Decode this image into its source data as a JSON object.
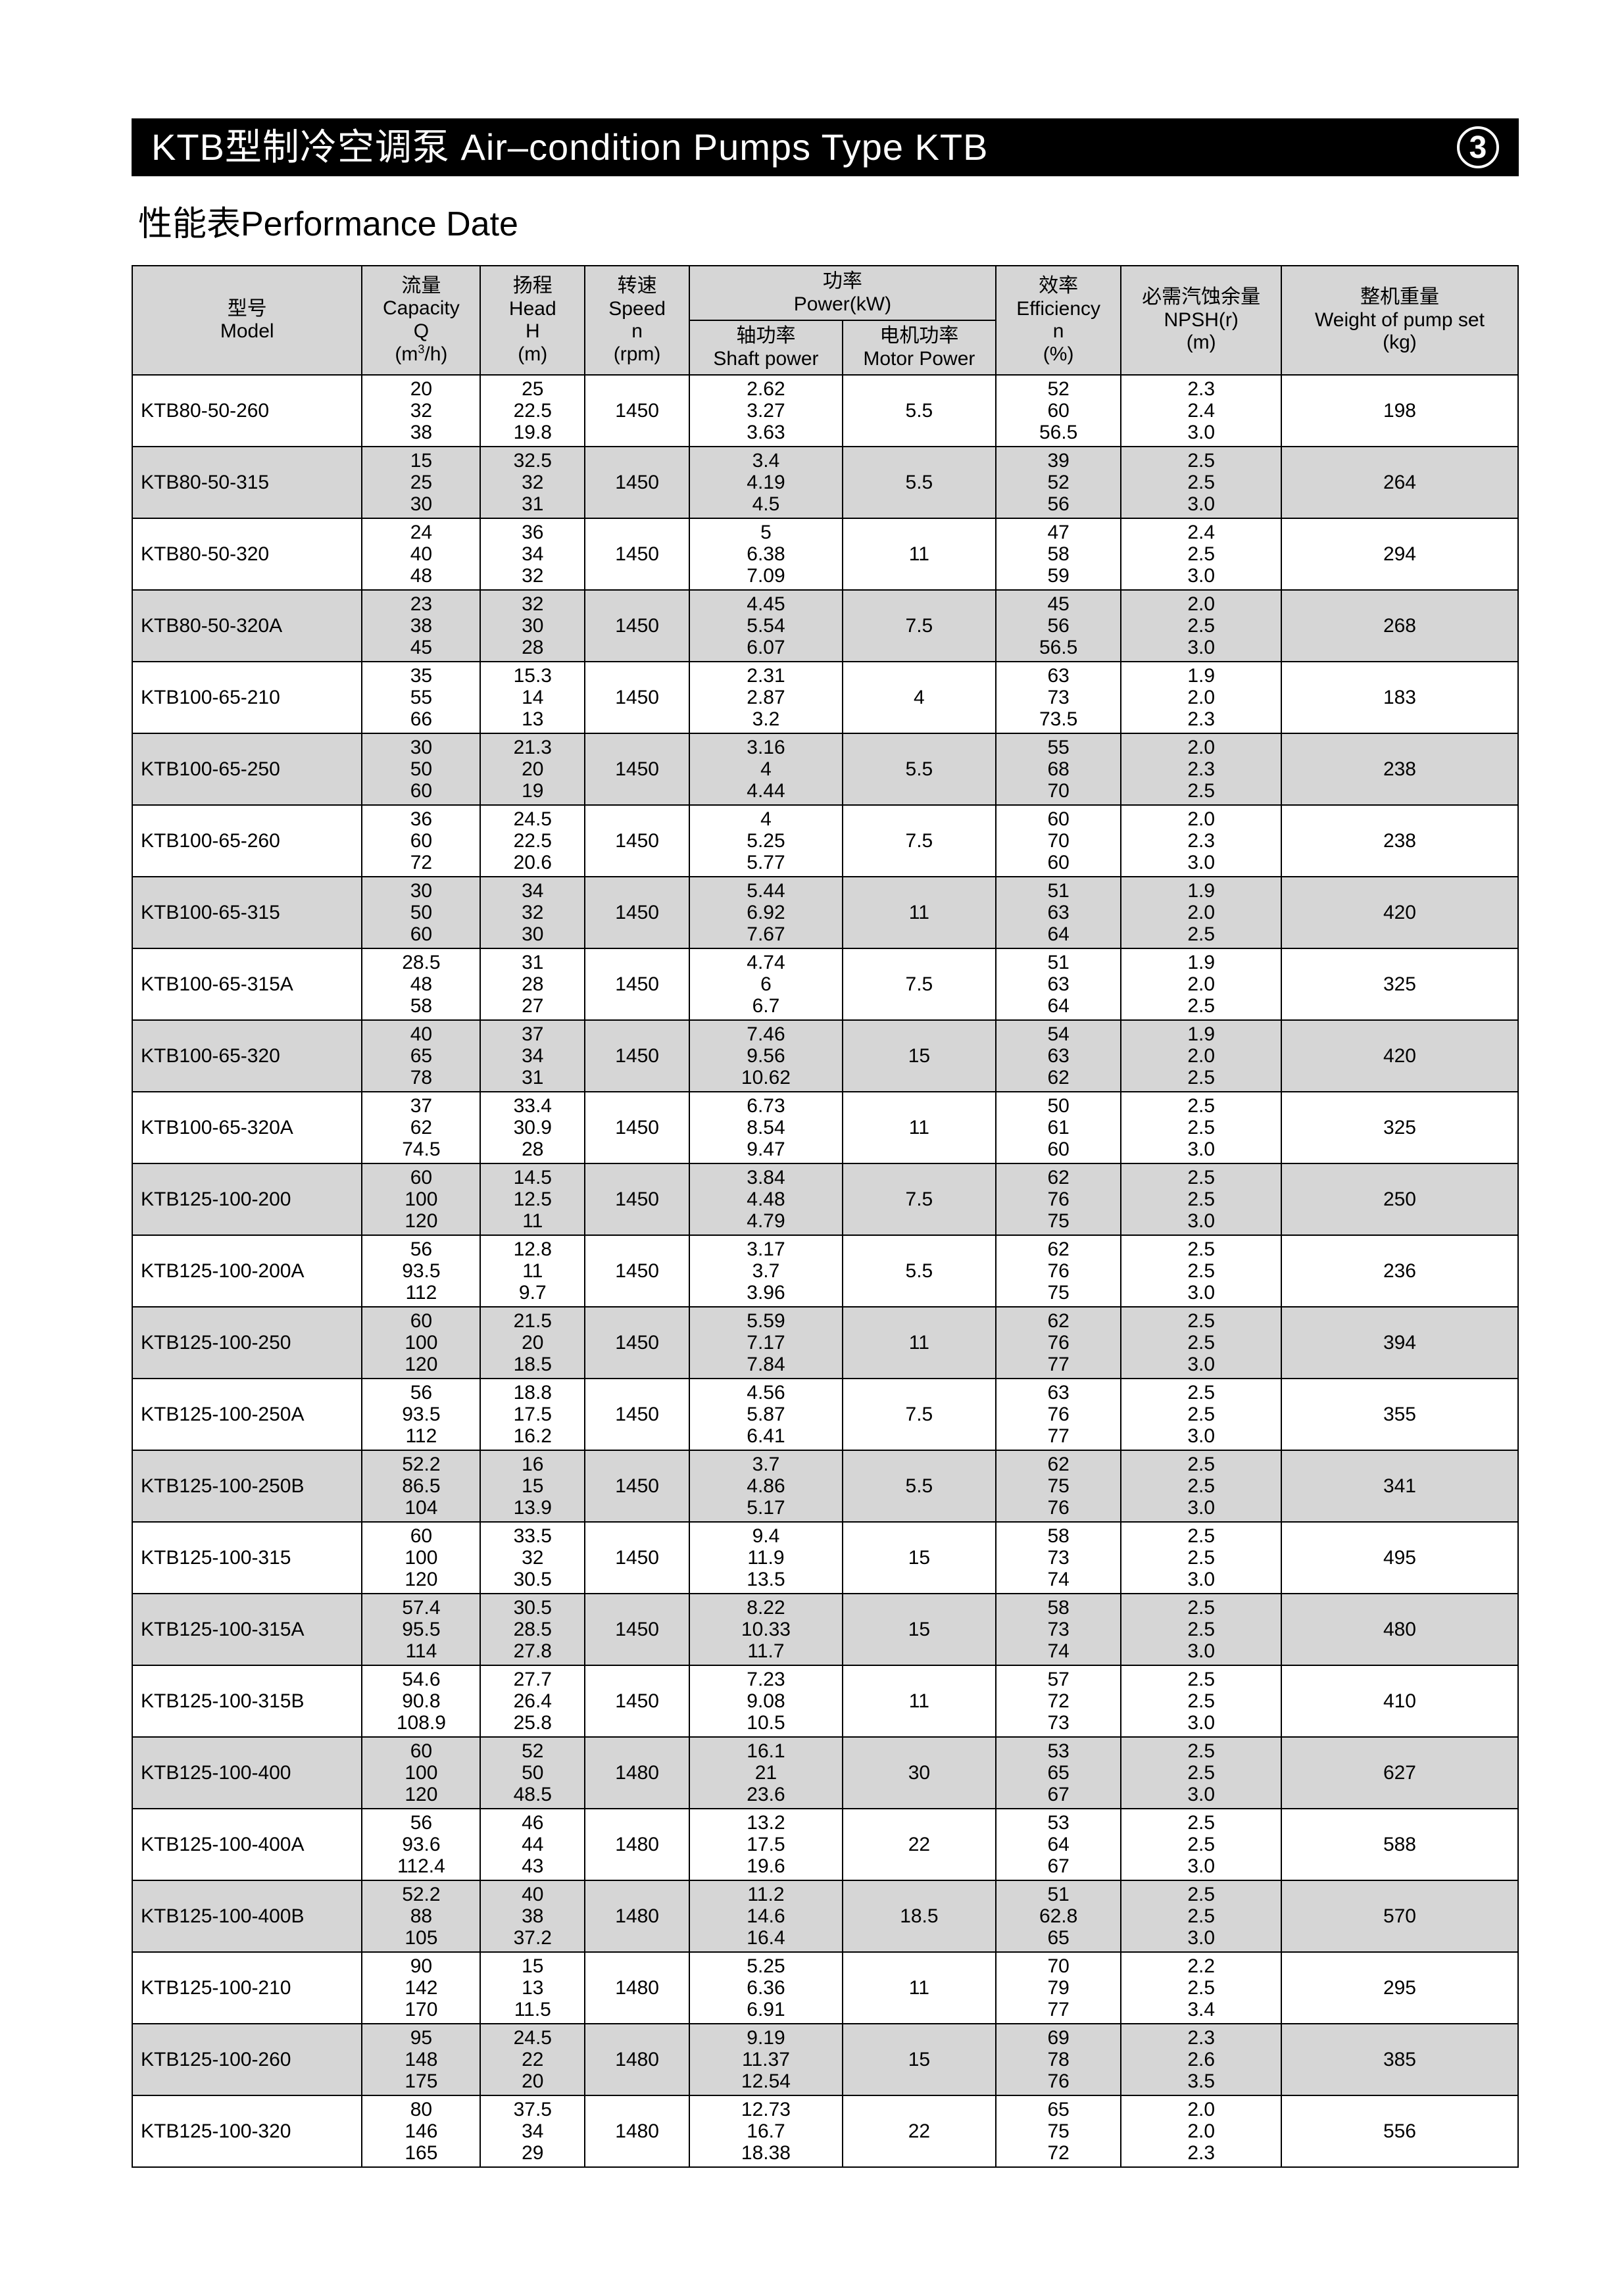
{
  "title_bar": "KTB型制冷空调泵 Air–condition Pumps Type KTB",
  "page_number": "3",
  "subtitle": "性能表Performance Date",
  "colors": {
    "bar_bg": "#000000",
    "bar_fg": "#ffffff",
    "header_bg": "#d6d6d6",
    "row_shade": "#d6d6d6",
    "border": "#000000"
  },
  "columns": {
    "model": {
      "cn": "型号",
      "en": "Model"
    },
    "capacity": {
      "cn": "流量",
      "en": "Capacity",
      "sym": "Q",
      "unit": "(m³/h)"
    },
    "head": {
      "cn": "扬程",
      "en": "Head",
      "sym": "H",
      "unit": "(m)"
    },
    "speed": {
      "cn": "转速",
      "en": "Speed",
      "sym": "n",
      "unit": "(rpm)"
    },
    "power_group": {
      "cn": "功率",
      "en": "Power(kW)"
    },
    "shaft": {
      "cn": "轴功率",
      "en": "Shaft power"
    },
    "motor": {
      "cn": "电机功率",
      "en": "Motor Power"
    },
    "eff": {
      "cn": "效率",
      "en": "Efficiency",
      "sym": "n",
      "unit": "(%)"
    },
    "npsh": {
      "cn": "必需汽蚀余量",
      "en": "NPSH(r)",
      "unit": "(m)"
    },
    "weight": {
      "cn": "整机重量",
      "en": "Weight of pump set",
      "unit": "(kg)"
    }
  },
  "rows": [
    {
      "model": "KTB80-50-260",
      "cap": [
        "20",
        "32",
        "38"
      ],
      "head": [
        "25",
        "22.5",
        "19.8"
      ],
      "speed": "1450",
      "shaft": [
        "2.62",
        "3.27",
        "3.63"
      ],
      "motor": "5.5",
      "eff": [
        "52",
        "60",
        "56.5"
      ],
      "npsh": [
        "2.3",
        "2.4",
        "3.0"
      ],
      "weight": "198"
    },
    {
      "model": "KTB80-50-315",
      "cap": [
        "15",
        "25",
        "30"
      ],
      "head": [
        "32.5",
        "32",
        "31"
      ],
      "speed": "1450",
      "shaft": [
        "3.4",
        "4.19",
        "4.5"
      ],
      "motor": "5.5",
      "eff": [
        "39",
        "52",
        "56"
      ],
      "npsh": [
        "2.5",
        "2.5",
        "3.0"
      ],
      "weight": "264"
    },
    {
      "model": "KTB80-50-320",
      "cap": [
        "24",
        "40",
        "48"
      ],
      "head": [
        "36",
        "34",
        "32"
      ],
      "speed": "1450",
      "shaft": [
        "5",
        "6.38",
        "7.09"
      ],
      "motor": "11",
      "eff": [
        "47",
        "58",
        "59"
      ],
      "npsh": [
        "2.4",
        "2.5",
        "3.0"
      ],
      "weight": "294"
    },
    {
      "model": "KTB80-50-320A",
      "cap": [
        "23",
        "38",
        "45"
      ],
      "head": [
        "32",
        "30",
        "28"
      ],
      "speed": "1450",
      "shaft": [
        "4.45",
        "5.54",
        "6.07"
      ],
      "motor": "7.5",
      "eff": [
        "45",
        "56",
        "56.5"
      ],
      "npsh": [
        "2.0",
        "2.5",
        "3.0"
      ],
      "weight": "268"
    },
    {
      "model": "KTB100-65-210",
      "cap": [
        "35",
        "55",
        "66"
      ],
      "head": [
        "15.3",
        "14",
        "13"
      ],
      "speed": "1450",
      "shaft": [
        "2.31",
        "2.87",
        "3.2"
      ],
      "motor": "4",
      "eff": [
        "63",
        "73",
        "73.5"
      ],
      "npsh": [
        "1.9",
        "2.0",
        "2.3"
      ],
      "weight": "183"
    },
    {
      "model": "KTB100-65-250",
      "cap": [
        "30",
        "50",
        "60"
      ],
      "head": [
        "21.3",
        "20",
        "19"
      ],
      "speed": "1450",
      "shaft": [
        "3.16",
        "4",
        "4.44"
      ],
      "motor": "5.5",
      "eff": [
        "55",
        "68",
        "70"
      ],
      "npsh": [
        "2.0",
        "2.3",
        "2.5"
      ],
      "weight": "238"
    },
    {
      "model": "KTB100-65-260",
      "cap": [
        "36",
        "60",
        "72"
      ],
      "head": [
        "24.5",
        "22.5",
        "20.6"
      ],
      "speed": "1450",
      "shaft": [
        "4",
        "5.25",
        "5.77"
      ],
      "motor": "7.5",
      "eff": [
        "60",
        "70",
        "60"
      ],
      "npsh": [
        "2.0",
        "2.3",
        "3.0"
      ],
      "weight": "238"
    },
    {
      "model": "KTB100-65-315",
      "cap": [
        "30",
        "50",
        "60"
      ],
      "head": [
        "34",
        "32",
        "30"
      ],
      "speed": "1450",
      "shaft": [
        "5.44",
        "6.92",
        "7.67"
      ],
      "motor": "11",
      "eff": [
        "51",
        "63",
        "64"
      ],
      "npsh": [
        "1.9",
        "2.0",
        "2.5"
      ],
      "weight": "420"
    },
    {
      "model": "KTB100-65-315A",
      "cap": [
        "28.5",
        "48",
        "58"
      ],
      "head": [
        "31",
        "28",
        "27"
      ],
      "speed": "1450",
      "shaft": [
        "4.74",
        "6",
        "6.7"
      ],
      "motor": "7.5",
      "eff": [
        "51",
        "63",
        "64"
      ],
      "npsh": [
        "1.9",
        "2.0",
        "2.5"
      ],
      "weight": "325"
    },
    {
      "model": "KTB100-65-320",
      "cap": [
        "40",
        "65",
        "78"
      ],
      "head": [
        "37",
        "34",
        "31"
      ],
      "speed": "1450",
      "shaft": [
        "7.46",
        "9.56",
        "10.62"
      ],
      "motor": "15",
      "eff": [
        "54",
        "63",
        "62"
      ],
      "npsh": [
        "1.9",
        "2.0",
        "2.5"
      ],
      "weight": "420"
    },
    {
      "model": "KTB100-65-320A",
      "cap": [
        "37",
        "62",
        "74.5"
      ],
      "head": [
        "33.4",
        "30.9",
        "28"
      ],
      "speed": "1450",
      "shaft": [
        "6.73",
        "8.54",
        "9.47"
      ],
      "motor": "11",
      "eff": [
        "50",
        "61",
        "60"
      ],
      "npsh": [
        "2.5",
        "2.5",
        "3.0"
      ],
      "weight": "325"
    },
    {
      "model": "KTB125-100-200",
      "cap": [
        "60",
        "100",
        "120"
      ],
      "head": [
        "14.5",
        "12.5",
        "11"
      ],
      "speed": "1450",
      "shaft": [
        "3.84",
        "4.48",
        "4.79"
      ],
      "motor": "7.5",
      "eff": [
        "62",
        "76",
        "75"
      ],
      "npsh": [
        "2.5",
        "2.5",
        "3.0"
      ],
      "weight": "250"
    },
    {
      "model": "KTB125-100-200A",
      "cap": [
        "56",
        "93.5",
        "112"
      ],
      "head": [
        "12.8",
        "11",
        "9.7"
      ],
      "speed": "1450",
      "shaft": [
        "3.17",
        "3.7",
        "3.96"
      ],
      "motor": "5.5",
      "eff": [
        "62",
        "76",
        "75"
      ],
      "npsh": [
        "2.5",
        "2.5",
        "3.0"
      ],
      "weight": "236"
    },
    {
      "model": "KTB125-100-250",
      "cap": [
        "60",
        "100",
        "120"
      ],
      "head": [
        "21.5",
        "20",
        "18.5"
      ],
      "speed": "1450",
      "shaft": [
        "5.59",
        "7.17",
        "7.84"
      ],
      "motor": "11",
      "eff": [
        "62",
        "76",
        "77"
      ],
      "npsh": [
        "2.5",
        "2.5",
        "3.0"
      ],
      "weight": "394"
    },
    {
      "model": "KTB125-100-250A",
      "cap": [
        "56",
        "93.5",
        "112"
      ],
      "head": [
        "18.8",
        "17.5",
        "16.2"
      ],
      "speed": "1450",
      "shaft": [
        "4.56",
        "5.87",
        "6.41"
      ],
      "motor": "7.5",
      "eff": [
        "63",
        "76",
        "77"
      ],
      "npsh": [
        "2.5",
        "2.5",
        "3.0"
      ],
      "weight": "355"
    },
    {
      "model": "KTB125-100-250B",
      "cap": [
        "52.2",
        "86.5",
        "104"
      ],
      "head": [
        "16",
        "15",
        "13.9"
      ],
      "speed": "1450",
      "shaft": [
        "3.7",
        "4.86",
        "5.17"
      ],
      "motor": "5.5",
      "eff": [
        "62",
        "75",
        "76"
      ],
      "npsh": [
        "2.5",
        "2.5",
        "3.0"
      ],
      "weight": "341"
    },
    {
      "model": "KTB125-100-315",
      "cap": [
        "60",
        "100",
        "120"
      ],
      "head": [
        "33.5",
        "32",
        "30.5"
      ],
      "speed": "1450",
      "shaft": [
        "9.4",
        "11.9",
        "13.5"
      ],
      "motor": "15",
      "eff": [
        "58",
        "73",
        "74"
      ],
      "npsh": [
        "2.5",
        "2.5",
        "3.0"
      ],
      "weight": "495"
    },
    {
      "model": "KTB125-100-315A",
      "cap": [
        "57.4",
        "95.5",
        "114"
      ],
      "head": [
        "30.5",
        "28.5",
        "27.8"
      ],
      "speed": "1450",
      "shaft": [
        "8.22",
        "10.33",
        "11.7"
      ],
      "motor": "15",
      "eff": [
        "58",
        "73",
        "74"
      ],
      "npsh": [
        "2.5",
        "2.5",
        "3.0"
      ],
      "weight": "480"
    },
    {
      "model": "KTB125-100-315B",
      "cap": [
        "54.6",
        "90.8",
        "108.9"
      ],
      "head": [
        "27.7",
        "26.4",
        "25.8"
      ],
      "speed": "1450",
      "shaft": [
        "7.23",
        "9.08",
        "10.5"
      ],
      "motor": "11",
      "eff": [
        "57",
        "72",
        "73"
      ],
      "npsh": [
        "2.5",
        "2.5",
        "3.0"
      ],
      "weight": "410"
    },
    {
      "model": "KTB125-100-400",
      "cap": [
        "60",
        "100",
        "120"
      ],
      "head": [
        "52",
        "50",
        "48.5"
      ],
      "speed": "1480",
      "shaft": [
        "16.1",
        "21",
        "23.6"
      ],
      "motor": "30",
      "eff": [
        "53",
        "65",
        "67"
      ],
      "npsh": [
        "2.5",
        "2.5",
        "3.0"
      ],
      "weight": "627"
    },
    {
      "model": "KTB125-100-400A",
      "cap": [
        "56",
        "93.6",
        "112.4"
      ],
      "head": [
        "46",
        "44",
        "43"
      ],
      "speed": "1480",
      "shaft": [
        "13.2",
        "17.5",
        "19.6"
      ],
      "motor": "22",
      "eff": [
        "53",
        "64",
        "67"
      ],
      "npsh": [
        "2.5",
        "2.5",
        "3.0"
      ],
      "weight": "588"
    },
    {
      "model": "KTB125-100-400B",
      "cap": [
        "52.2",
        "88",
        "105"
      ],
      "head": [
        "40",
        "38",
        "37.2"
      ],
      "speed": "1480",
      "shaft": [
        "11.2",
        "14.6",
        "16.4"
      ],
      "motor": "18.5",
      "eff": [
        "51",
        "62.8",
        "65"
      ],
      "npsh": [
        "2.5",
        "2.5",
        "3.0"
      ],
      "weight": "570"
    },
    {
      "model": "KTB125-100-210",
      "cap": [
        "90",
        "142",
        "170"
      ],
      "head": [
        "15",
        "13",
        "11.5"
      ],
      "speed": "1480",
      "shaft": [
        "5.25",
        "6.36",
        "6.91"
      ],
      "motor": "11",
      "eff": [
        "70",
        "79",
        "77"
      ],
      "npsh": [
        "2.2",
        "2.5",
        "3.4"
      ],
      "weight": "295"
    },
    {
      "model": "KTB125-100-260",
      "cap": [
        "95",
        "148",
        "175"
      ],
      "head": [
        "24.5",
        "22",
        "20"
      ],
      "speed": "1480",
      "shaft": [
        "9.19",
        "11.37",
        "12.54"
      ],
      "motor": "15",
      "eff": [
        "69",
        "78",
        "76"
      ],
      "npsh": [
        "2.3",
        "2.6",
        "3.5"
      ],
      "weight": "385"
    },
    {
      "model": "KTB125-100-320",
      "cap": [
        "80",
        "146",
        "165"
      ],
      "head": [
        "37.5",
        "34",
        "29"
      ],
      "speed": "1480",
      "shaft": [
        "12.73",
        "16.7",
        "18.38"
      ],
      "motor": "22",
      "eff": [
        "65",
        "75",
        "72"
      ],
      "npsh": [
        "2.0",
        "2.0",
        "2.3"
      ],
      "weight": "556"
    }
  ]
}
